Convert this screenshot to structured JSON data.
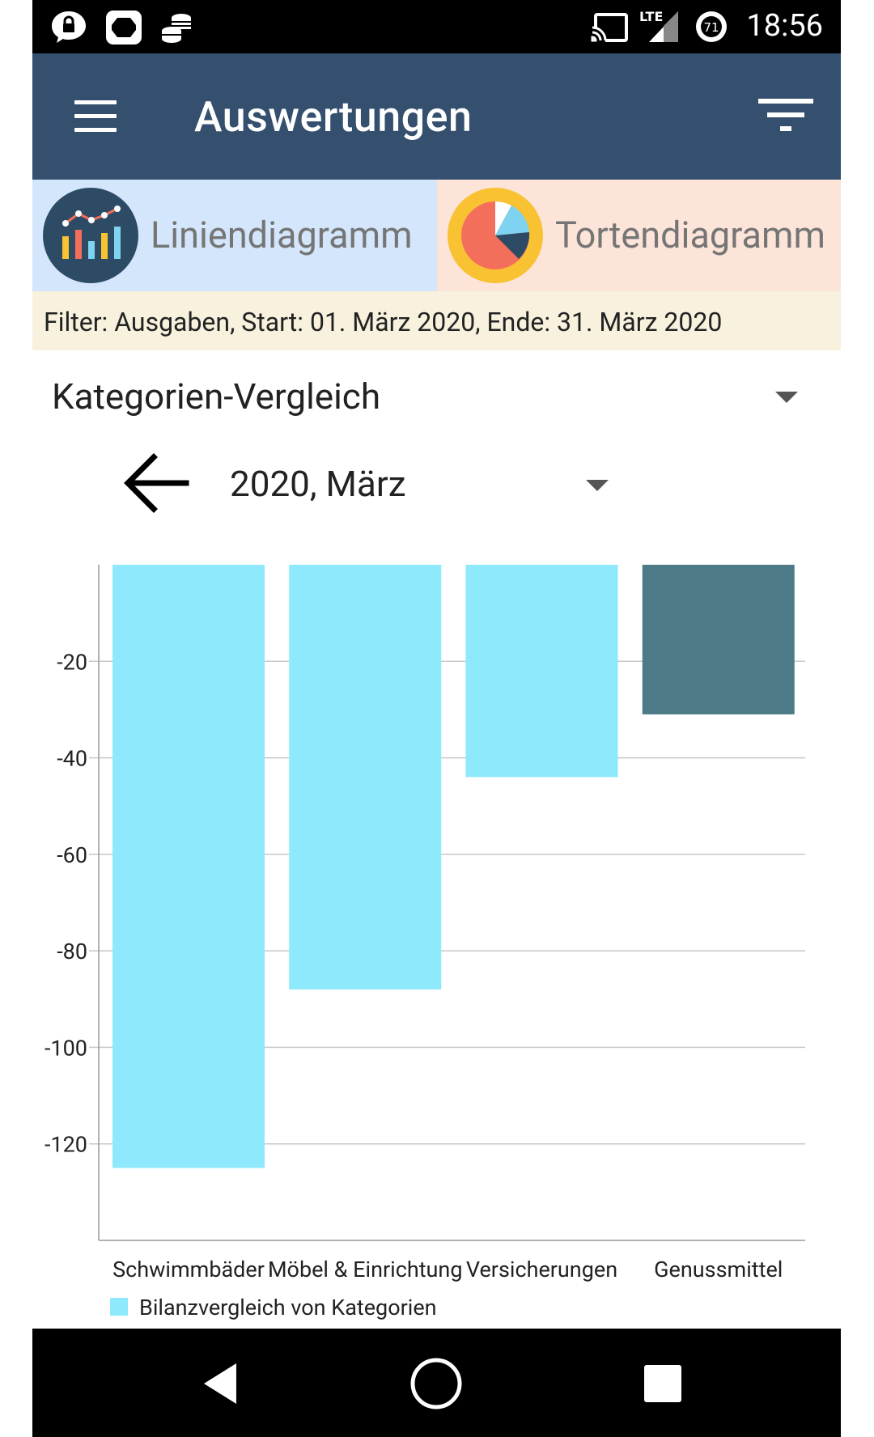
{
  "status_bar": {
    "time": "18:56",
    "network_label": "LTE",
    "badge_number": "71",
    "icons": [
      "lock-icon",
      "app-icon",
      "coins-icon",
      "cast-icon",
      "signal-icon",
      "data-saver-icon"
    ]
  },
  "app_bar": {
    "title": "Auswertungen",
    "menu_icon": "hamburger-menu-icon",
    "filter_icon": "filter-list-icon"
  },
  "tabs": [
    {
      "label": "Liniendiagramm",
      "icon": "bar-line-chart-icon",
      "bg": "#D3E6FB"
    },
    {
      "label": "Tortendiagramm",
      "icon": "pie-chart-icon",
      "bg": "#FCE4D9"
    }
  ],
  "filter": {
    "text": "Filter: Ausgaben, Start: 01. März 2020, Ende: 31. März 2020"
  },
  "report_type": {
    "selected": "Kategorien-Vergleich"
  },
  "period": {
    "selected": "2020, März"
  },
  "chart_data": {
    "type": "bar",
    "categories": [
      "Schwimmbäder",
      "Möbel & Einrichtung",
      "Versicherungen",
      "Genussmittel"
    ],
    "values": [
      -125,
      -88,
      -44,
      -31
    ],
    "bar_colors": [
      "#8EE9FC",
      "#8EE9FC",
      "#8EE9FC",
      "#4C7A86"
    ],
    "ylim": [
      -140,
      0
    ],
    "yticks": [
      -20,
      -40,
      -60,
      -80,
      -100,
      -120
    ],
    "ytick_labels": [
      "-20",
      "-40",
      "-60",
      "-80",
      "-100",
      "-120"
    ],
    "grid": true,
    "legend": {
      "label": "Bilanzvergleich von Kategorien",
      "color": "#8EE9FC",
      "position": "bottom-left"
    }
  },
  "nav_bar": {
    "buttons": [
      "back-icon",
      "home-icon",
      "recents-icon"
    ]
  }
}
